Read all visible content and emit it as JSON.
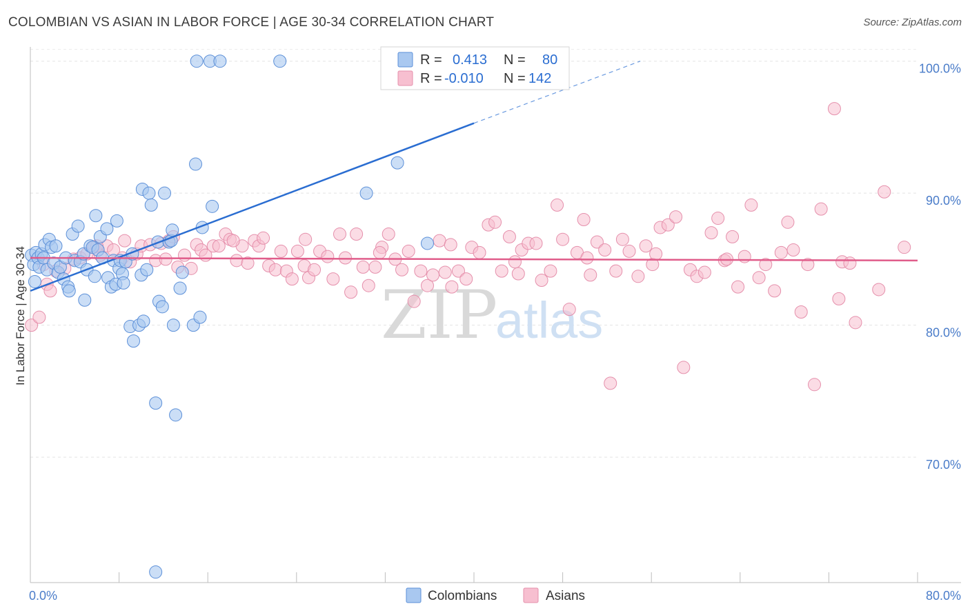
{
  "header": {
    "title": "COLOMBIAN VS ASIAN IN LABOR FORCE | AGE 30-34 CORRELATION CHART",
    "source": "Source: ZipAtlas.com"
  },
  "watermark": {
    "zip": "ZIP",
    "atlas": "atlas"
  },
  "legend": {
    "r_label": "R =",
    "n_label": "N =",
    "rows": [
      {
        "r": "0.413",
        "n": "80"
      },
      {
        "r": "-0.010",
        "n": "142"
      }
    ]
  },
  "colors": {
    "colombian_fill": "#a9c8f0",
    "colombian_stroke": "#5b8fd8",
    "colombian_line": "#2a6dd1",
    "asian_fill": "#f7bfd0",
    "asian_stroke": "#e58fab",
    "asian_line": "#e05c8a",
    "tick_text": "#4a7cc9"
  },
  "chart_data": {
    "type": "scatter",
    "title": "COLOMBIAN VS ASIAN IN LABOR FORCE | AGE 30-34 CORRELATION CHART",
    "xlabel": "",
    "ylabel": "In Labor Force | Age 30-34",
    "xlim": [
      0,
      80
    ],
    "ylim": [
      60.5,
      101.5
    ],
    "x_tick_labels": [
      "0.0%",
      "80.0%"
    ],
    "y_ticks": [
      70,
      80,
      90,
      100
    ],
    "y_tick_labels": [
      "70.0%",
      "80.0%",
      "90.0%",
      "100.0%"
    ],
    "grid": true,
    "series": [
      {
        "name": "Colombians",
        "r": 0.413,
        "n": 80,
        "trend": {
          "x0": 0,
          "y0": 82.6,
          "x1": 40,
          "y1": 95.3,
          "dashed_to_x": 55,
          "dashed_to_y": 100
        },
        "points": [
          [
            0.1,
            85.3
          ],
          [
            0.3,
            84.6
          ],
          [
            0.4,
            83.3
          ],
          [
            0.5,
            85.5
          ],
          [
            0.7,
            85.1
          ],
          [
            0.8,
            84.4
          ],
          [
            1.0,
            85.4
          ],
          [
            1.2,
            85.1
          ],
          [
            1.3,
            86.1
          ],
          [
            1.5,
            84.2
          ],
          [
            1.7,
            86.5
          ],
          [
            1.9,
            85.9
          ],
          [
            2.1,
            84.7
          ],
          [
            2.3,
            86.0
          ],
          [
            2.5,
            84.0
          ],
          [
            2.7,
            84.4
          ],
          [
            3.0,
            83.5
          ],
          [
            3.2,
            85.1
          ],
          [
            3.4,
            82.9
          ],
          [
            3.5,
            82.6
          ],
          [
            3.8,
            86.9
          ],
          [
            4.0,
            84.9
          ],
          [
            4.3,
            87.5
          ],
          [
            4.5,
            84.8
          ],
          [
            4.8,
            85.4
          ],
          [
            4.9,
            81.9
          ],
          [
            5.1,
            84.2
          ],
          [
            5.4,
            86.0
          ],
          [
            5.6,
            85.9
          ],
          [
            5.8,
            83.7
          ],
          [
            5.9,
            88.3
          ],
          [
            6.1,
            85.7
          ],
          [
            6.3,
            86.7
          ],
          [
            6.5,
            85.1
          ],
          [
            6.9,
            87.3
          ],
          [
            7.0,
            83.6
          ],
          [
            7.3,
            82.9
          ],
          [
            7.5,
            84.9
          ],
          [
            7.7,
            83.1
          ],
          [
            7.8,
            87.9
          ],
          [
            8.0,
            84.3
          ],
          [
            8.1,
            84.9
          ],
          [
            8.3,
            83.9
          ],
          [
            8.4,
            83.2
          ],
          [
            8.6,
            84.8
          ],
          [
            9.0,
            79.9
          ],
          [
            9.2,
            85.4
          ],
          [
            9.3,
            78.8
          ],
          [
            9.8,
            80.0
          ],
          [
            10.0,
            83.8
          ],
          [
            10.1,
            90.3
          ],
          [
            10.2,
            80.3
          ],
          [
            10.5,
            84.2
          ],
          [
            10.7,
            90.0
          ],
          [
            10.9,
            89.1
          ],
          [
            11.3,
            74.1
          ],
          [
            11.5,
            86.3
          ],
          [
            11.6,
            81.8
          ],
          [
            11.9,
            81.4
          ],
          [
            12.1,
            90.0
          ],
          [
            12.5,
            86.3
          ],
          [
            12.7,
            86.4
          ],
          [
            12.8,
            87.2
          ],
          [
            12.9,
            80.0
          ],
          [
            13.1,
            73.2
          ],
          [
            13.5,
            82.8
          ],
          [
            13.7,
            84.0
          ],
          [
            14.7,
            80.0
          ],
          [
            14.9,
            92.2
          ],
          [
            15.0,
            100.0
          ],
          [
            15.3,
            80.6
          ],
          [
            15.5,
            87.4
          ],
          [
            16.2,
            100.0
          ],
          [
            16.4,
            89.0
          ],
          [
            17.1,
            100.0
          ],
          [
            22.5,
            100.0
          ],
          [
            30.3,
            90.0
          ],
          [
            33.1,
            92.3
          ],
          [
            35.8,
            86.2
          ],
          [
            11.3,
            61.3
          ]
        ]
      },
      {
        "name": "Asians",
        "r": -0.01,
        "n": 142,
        "trend": {
          "x0": 0,
          "y0": 85.1,
          "x1": 80,
          "y1": 84.9
        },
        "points": [
          [
            0.1,
            80.0
          ],
          [
            0.8,
            80.6
          ],
          [
            1.2,
            84.6
          ],
          [
            1.5,
            83.1
          ],
          [
            1.8,
            82.6
          ],
          [
            2.3,
            84.1
          ],
          [
            3.1,
            84.3
          ],
          [
            3.9,
            85.0
          ],
          [
            4.5,
            85.1
          ],
          [
            5.1,
            85.4
          ],
          [
            5.7,
            85.9
          ],
          [
            6.3,
            85.3
          ],
          [
            6.9,
            86.0
          ],
          [
            7.5,
            85.7
          ],
          [
            8.3,
            85.1
          ],
          [
            8.5,
            86.4
          ],
          [
            9.0,
            84.8
          ],
          [
            9.6,
            85.4
          ],
          [
            10.0,
            86.0
          ],
          [
            10.8,
            86.1
          ],
          [
            11.3,
            84.9
          ],
          [
            11.8,
            86.2
          ],
          [
            12.5,
            86.4
          ],
          [
            12.9,
            86.7
          ],
          [
            13.3,
            84.4
          ],
          [
            13.9,
            85.3
          ],
          [
            14.5,
            84.3
          ],
          [
            15.0,
            86.1
          ],
          [
            15.4,
            85.7
          ],
          [
            15.8,
            85.3
          ],
          [
            16.5,
            86.0
          ],
          [
            17.0,
            86.0
          ],
          [
            17.6,
            86.9
          ],
          [
            18.0,
            86.5
          ],
          [
            18.6,
            84.9
          ],
          [
            19.1,
            86.0
          ],
          [
            19.6,
            84.7
          ],
          [
            20.2,
            86.4
          ],
          [
            20.6,
            86.0
          ],
          [
            21.0,
            86.6
          ],
          [
            21.5,
            84.5
          ],
          [
            22.1,
            84.2
          ],
          [
            22.6,
            85.6
          ],
          [
            23.1,
            84.1
          ],
          [
            23.6,
            83.5
          ],
          [
            24.1,
            85.6
          ],
          [
            24.7,
            84.5
          ],
          [
            25.1,
            83.6
          ],
          [
            25.6,
            84.2
          ],
          [
            26.1,
            85.6
          ],
          [
            26.8,
            85.2
          ],
          [
            27.3,
            83.5
          ],
          [
            27.9,
            86.9
          ],
          [
            28.4,
            85.1
          ],
          [
            28.9,
            82.5
          ],
          [
            29.4,
            86.9
          ],
          [
            30.0,
            84.4
          ],
          [
            30.5,
            83.0
          ],
          [
            31.1,
            84.4
          ],
          [
            31.7,
            85.9
          ],
          [
            32.3,
            86.9
          ],
          [
            32.9,
            85.0
          ],
          [
            33.5,
            84.2
          ],
          [
            34.1,
            85.6
          ],
          [
            34.6,
            81.8
          ],
          [
            35.2,
            84.1
          ],
          [
            35.8,
            83.0
          ],
          [
            36.3,
            83.8
          ],
          [
            36.9,
            86.4
          ],
          [
            37.4,
            84.0
          ],
          [
            38.0,
            82.9
          ],
          [
            38.6,
            84.1
          ],
          [
            39.3,
            83.5
          ],
          [
            39.8,
            85.9
          ],
          [
            40.5,
            85.5
          ],
          [
            41.3,
            87.6
          ],
          [
            41.9,
            87.8
          ],
          [
            42.5,
            84.1
          ],
          [
            43.2,
            86.7
          ],
          [
            43.7,
            84.8
          ],
          [
            44.3,
            85.7
          ],
          [
            44.9,
            86.2
          ],
          [
            45.6,
            86.2
          ],
          [
            46.1,
            83.4
          ],
          [
            46.9,
            84.1
          ],
          [
            47.5,
            89.1
          ],
          [
            48.0,
            86.5
          ],
          [
            48.6,
            81.2
          ],
          [
            49.3,
            85.5
          ],
          [
            49.9,
            88.0
          ],
          [
            50.5,
            83.8
          ],
          [
            51.1,
            86.3
          ],
          [
            51.8,
            85.7
          ],
          [
            52.3,
            75.6
          ],
          [
            52.8,
            84.1
          ],
          [
            53.4,
            86.5
          ],
          [
            54.0,
            85.6
          ],
          [
            54.8,
            83.7
          ],
          [
            55.5,
            86.0
          ],
          [
            56.1,
            84.6
          ],
          [
            56.8,
            87.4
          ],
          [
            57.5,
            87.6
          ],
          [
            58.2,
            88.2
          ],
          [
            58.9,
            76.8
          ],
          [
            59.5,
            84.2
          ],
          [
            60.1,
            83.7
          ],
          [
            60.8,
            84.0
          ],
          [
            61.4,
            87.0
          ],
          [
            62.0,
            88.1
          ],
          [
            62.6,
            84.9
          ],
          [
            63.3,
            86.7
          ],
          [
            63.8,
            82.9
          ],
          [
            64.4,
            85.2
          ],
          [
            65.0,
            89.1
          ],
          [
            65.7,
            83.6
          ],
          [
            66.3,
            84.6
          ],
          [
            67.1,
            82.6
          ],
          [
            67.7,
            85.5
          ],
          [
            68.3,
            87.8
          ],
          [
            68.8,
            85.7
          ],
          [
            69.5,
            81.0
          ],
          [
            70.1,
            84.6
          ],
          [
            70.7,
            75.5
          ],
          [
            71.3,
            88.8
          ],
          [
            72.5,
            96.4
          ],
          [
            72.9,
            82.0
          ],
          [
            73.2,
            84.8
          ],
          [
            73.9,
            84.7
          ],
          [
            74.4,
            80.2
          ],
          [
            76.5,
            82.7
          ],
          [
            77.0,
            90.1
          ],
          [
            78.8,
            85.9
          ],
          [
            6.0,
            86.0
          ],
          [
            12.2,
            85.0
          ],
          [
            18.3,
            86.4
          ],
          [
            24.8,
            86.5
          ],
          [
            31.5,
            85.5
          ],
          [
            37.9,
            86.1
          ],
          [
            44.0,
            83.9
          ],
          [
            50.2,
            85.1
          ],
          [
            56.4,
            85.4
          ],
          [
            62.8,
            85.0
          ]
        ]
      }
    ]
  },
  "bottom_legend": {
    "items": [
      "Colombians",
      "Asians"
    ]
  }
}
